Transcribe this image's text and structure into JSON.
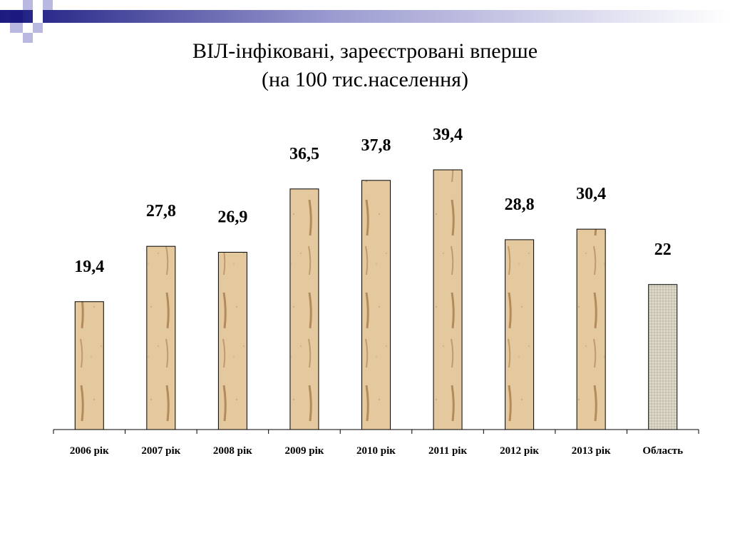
{
  "title": {
    "line1": "ВІЛ-інфіковані, зареєстровані вперше",
    "line2": "(на 100 тис.населення)"
  },
  "colors": {
    "bar_fill": "#e8cfa6",
    "bar_texture": "#a87a4a",
    "highlight_fill": "#e2ddd0",
    "highlight_grid": "#b8b09c",
    "deco_navy": "#1a1a80",
    "deco_lavender": "#b8b8e0"
  },
  "chart_data": {
    "type": "bar",
    "categories": [
      "2006 рік",
      "2007 рік",
      "2008 рік",
      "2009 рік",
      "2010 рік",
      "2011 рік",
      "2012 рік",
      "2013 рік",
      "Область"
    ],
    "values": [
      19.4,
      27.8,
      26.9,
      36.5,
      37.8,
      39.4,
      28.8,
      30.4,
      22
    ],
    "data_labels": [
      "19,4",
      "27,8",
      "26,9",
      "36,5",
      "37,8",
      "39,4",
      "28,8",
      "30,4",
      "22"
    ],
    "highlight_category": "Область",
    "xlabel": "",
    "ylabel": "",
    "ylim": [
      0,
      39.4
    ],
    "grid": false,
    "legend": "none"
  }
}
